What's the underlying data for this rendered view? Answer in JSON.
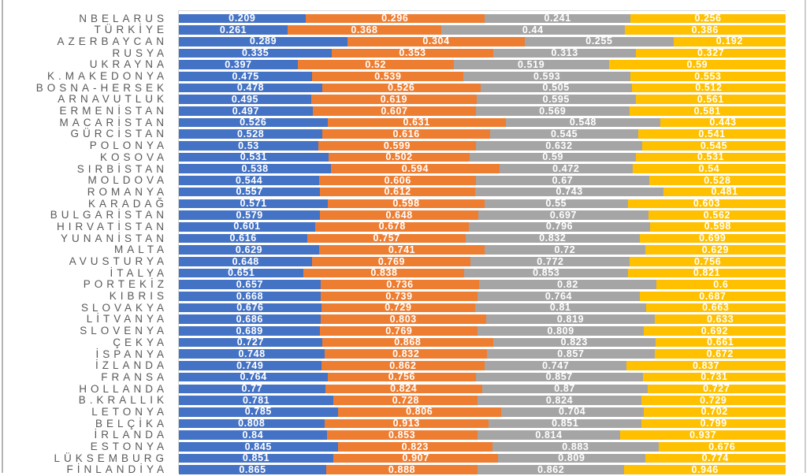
{
  "page": {
    "background": "#FFFFFF"
  },
  "frame": {
    "left_edge_color": "#B4B4B4",
    "right_edge_color": "#CDCDCD",
    "plot_border_color": "#D9D9D9"
  },
  "text_colors": {
    "category_label": "#595959",
    "value_label": "#FFFFFF"
  },
  "chart_data": {
    "type": "bar",
    "orientation": "horizontal",
    "stacking": "100%",
    "title": "",
    "value_labels_visible": true,
    "categories": [
      "NBELARUS",
      "TÜRKİYE",
      "AZERBAYCAN",
      "RUSYA",
      "UKRAYNA",
      "K.MAKEDONYA",
      "BOSNA-HERSEK",
      "ARNAVUTLUK",
      "ERMENİSTAN",
      "MACARİSTAN",
      "GÜRCİSTAN",
      "POLONYA",
      "KOSOVA",
      "SIRBİSTAN",
      "MOLDOVA",
      "ROMANYA",
      "KARADAĞ",
      "BULGARİSTAN",
      "HIRVATİSTAN",
      "YUNANİSTAN",
      "MALTA",
      "AVUSTURYA",
      "İTALYA",
      "PORTEKİZ",
      "KIBRIS",
      "SLOVAKYA",
      "LİTVANYA",
      "SLOVENYA",
      "ÇEKYA",
      "İSPANYA",
      "İZLANDA",
      "FRANSA",
      "HOLLANDA",
      "B.KRALLIK",
      "LETONYA",
      "BELÇİKA",
      "İRLANDA",
      "ESTONYA",
      "LÜKSEMBURG",
      "FİNLANDİYA"
    ],
    "series": [
      {
        "key": "series-1",
        "color": "#4472C4",
        "values": [
          0.209,
          0.261,
          0.289,
          0.335,
          0.397,
          0.475,
          0.478,
          0.495,
          0.497,
          0.526,
          0.528,
          0.53,
          0.531,
          0.538,
          0.544,
          0.557,
          0.571,
          0.579,
          0.601,
          0.616,
          0.629,
          0.648,
          0.651,
          0.657,
          0.668,
          0.676,
          0.686,
          0.689,
          0.727,
          0.748,
          0.749,
          0.764,
          0.77,
          0.781,
          0.785,
          0.808,
          0.84,
          0.845,
          0.851,
          0.865
        ]
      },
      {
        "key": "series-2",
        "color": "#ED7D31",
        "values": [
          0.296,
          0.368,
          0.304,
          0.353,
          0.52,
          0.539,
          0.526,
          0.619,
          0.607,
          0.631,
          0.616,
          0.599,
          0.502,
          0.594,
          0.606,
          0.612,
          0.598,
          0.648,
          0.678,
          0.757,
          0.741,
          0.769,
          0.838,
          0.736,
          0.739,
          0.729,
          0.803,
          0.769,
          0.868,
          0.832,
          0.862,
          0.756,
          0.824,
          0.728,
          0.806,
          0.913,
          0.853,
          0.823,
          0.907,
          0.888
        ]
      },
      {
        "key": "series-3",
        "color": "#A5A5A5",
        "values": [
          0.241,
          0.44,
          0.255,
          0.313,
          0.519,
          0.593,
          0.505,
          0.595,
          0.569,
          0.548,
          0.545,
          0.632,
          0.59,
          0.472,
          0.67,
          0.743,
          0.55,
          0.697,
          0.796,
          0.832,
          0.72,
          0.772,
          0.853,
          0.82,
          0.764,
          0.81,
          0.819,
          0.809,
          0.823,
          0.857,
          0.747,
          0.857,
          0.87,
          0.824,
          0.704,
          0.851,
          0.814,
          0.883,
          0.809,
          0.862
        ]
      },
      {
        "key": "series-4",
        "color": "#FFC000",
        "values": [
          0.256,
          0.386,
          0.192,
          0.327,
          0.59,
          0.553,
          0.512,
          0.561,
          0.581,
          0.443,
          0.541,
          0.545,
          0.531,
          0.54,
          0.528,
          0.481,
          0.603,
          0.562,
          0.598,
          0.699,
          0.629,
          0.756,
          0.821,
          0.6,
          0.687,
          0.663,
          0.633,
          0.692,
          0.661,
          0.672,
          0.837,
          0.731,
          0.727,
          0.729,
          0.702,
          0.799,
          0.937,
          0.676,
          0.774,
          0.946
        ]
      }
    ]
  }
}
